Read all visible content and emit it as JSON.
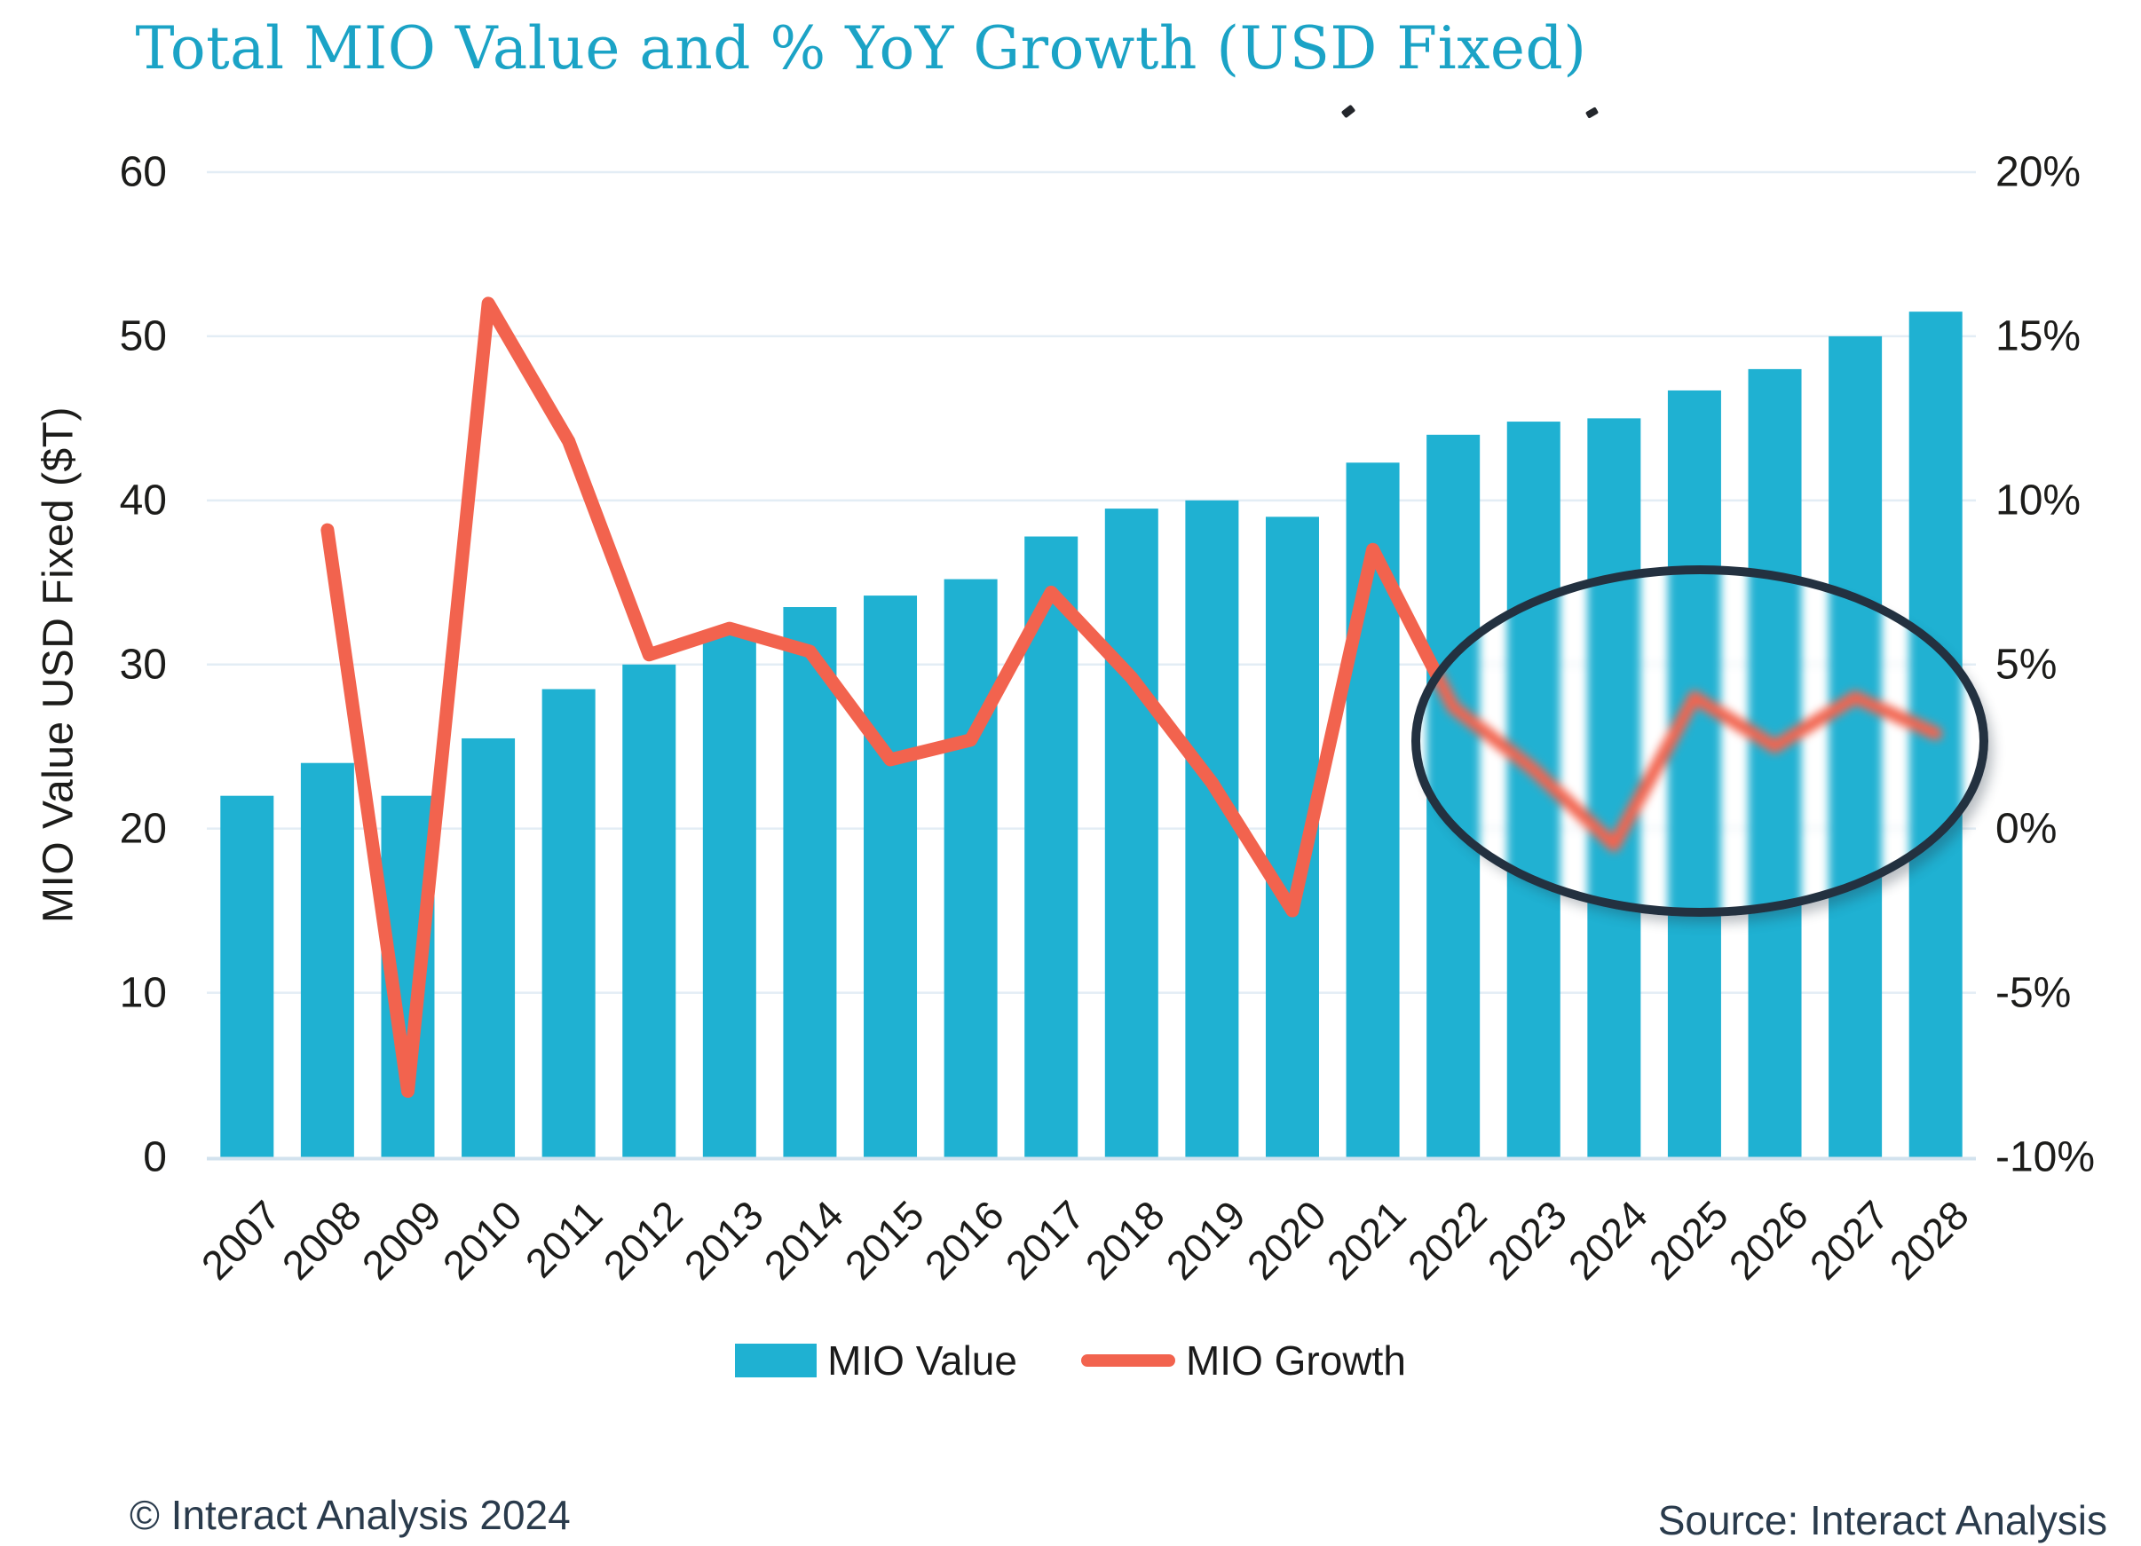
{
  "title": "Total MIO Value and % YoY Growth (USD Fixed)",
  "left_axis": {
    "label": "MIO Value USD Fixed ($T)",
    "ticks": [
      "60",
      "50",
      "40",
      "30",
      "20",
      "10",
      "0"
    ],
    "range": [
      0,
      60
    ]
  },
  "right_axis": {
    "ticks": [
      "20%",
      "15%",
      "10%",
      "5%",
      "0%",
      "-5%",
      "-10%"
    ],
    "range": [
      -10,
      20
    ]
  },
  "x_axis": {
    "years": [
      "2007",
      "2008",
      "2009",
      "2010",
      "2011",
      "2012",
      "2013",
      "2014",
      "2015",
      "2016",
      "2017",
      "2018",
      "2019",
      "2020",
      "2021",
      "2022",
      "2023",
      "2024",
      "2025",
      "2026",
      "2027",
      "2028"
    ]
  },
  "legend": {
    "items": [
      {
        "label": "MIO Value",
        "marker": "bar-swatch",
        "color": "#1FB1D2"
      },
      {
        "label": "MIO Growth",
        "marker": "line-swatch",
        "color": "#F2634E"
      }
    ]
  },
  "footer": {
    "left": "© Interact Analysis 2024",
    "right": "Source: Interact Analysis"
  },
  "colors": {
    "bar": "#1FB1D2",
    "line": "#F2634E",
    "title": "#1BA3C6",
    "ellipse_stroke": "#233140",
    "gridline": "#E3EDF5",
    "baseline": "#D2E2EE",
    "tick_text": "#1C1C1A",
    "footer_text": "#2A3B4C",
    "background": "#FFFFFF"
  },
  "chart_data": {
    "type": "bar+line combo (dual axis)",
    "title": "Total MIO Value and % YoY Growth (USD Fixed)",
    "categories": [
      2007,
      2008,
      2009,
      2010,
      2011,
      2012,
      2013,
      2014,
      2015,
      2016,
      2017,
      2018,
      2019,
      2020,
      2021,
      2022,
      2023,
      2024,
      2025,
      2026,
      2027,
      2028
    ],
    "series": [
      {
        "name": "MIO Value",
        "type": "bar",
        "axis": "left",
        "unit": "$T",
        "values": [
          22.0,
          24.0,
          22.0,
          25.5,
          28.5,
          30.0,
          31.8,
          33.5,
          34.2,
          35.2,
          37.8,
          39.5,
          40.0,
          39.0,
          42.3,
          44.0,
          44.8,
          45.0,
          46.7,
          48.0,
          50.0,
          51.5
        ]
      },
      {
        "name": "MIO Growth",
        "type": "line",
        "axis": "right",
        "unit": "%",
        "values": [
          null,
          9.1,
          -8.0,
          16.0,
          11.8,
          5.3,
          6.1,
          5.4,
          2.1,
          2.7,
          7.2,
          4.6,
          1.4,
          -2.5,
          8.5,
          3.7,
          1.8,
          -0.5,
          4.0,
          2.5,
          4.0,
          2.9
        ]
      }
    ],
    "left_axis_label": "MIO Value USD Fixed ($T)",
    "left_ylim": [
      0,
      60
    ],
    "right_ylim": [
      -10,
      20
    ],
    "gridlines": "horizontal only, light blue",
    "legend_position": "bottom-center",
    "annotation": {
      "shape": "ellipse",
      "purpose": "highlights the 2022-2028 region of the chart (bars and growth line shown blurred inside)",
      "x_year_span": [
        2021.6,
        2028.8
      ],
      "right_axis_pct_span": [
        -2.7,
        8.0
      ]
    }
  }
}
